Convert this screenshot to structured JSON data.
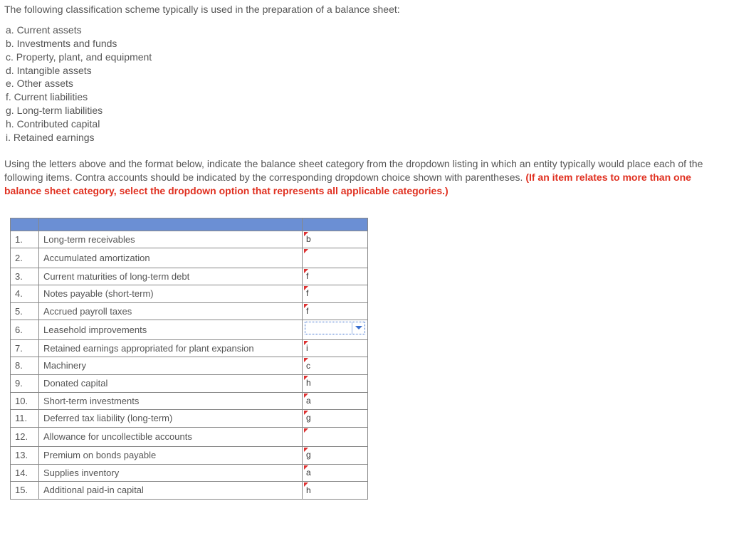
{
  "intro": "The following classification scheme typically is used in the preparation of a balance sheet:",
  "scheme": [
    "a. Current assets",
    "b. Investments and funds",
    "c. Property, plant, and equipment",
    "d. Intangible assets",
    "e. Other assets",
    "f. Current liabilities",
    "g. Long-term liabilities",
    "h. Contributed capital",
    "i. Retained earnings"
  ],
  "instructions_plain": "Using the letters above and the format below, indicate the balance sheet category from the dropdown listing in which an entity typically would place each of the following items. Contra accounts should be indicated by the corresponding dropdown choice shown with parentheses. ",
  "instructions_red": "(If an item relates to more than one balance sheet category, select the dropdown option that represents all applicable categories.)",
  "header_color": "#6b8fd4",
  "dropdown_arrow_color": "#3a6fcf",
  "rows": [
    {
      "num": "1.",
      "desc": "Long-term receivables",
      "answer": "b",
      "tick": true,
      "active": false
    },
    {
      "num": "2.",
      "desc": "Accumulated amortization",
      "answer": "",
      "tick": true,
      "active": false
    },
    {
      "num": "3.",
      "desc": "Current maturities of long-term debt",
      "answer": "f",
      "tick": true,
      "active": false
    },
    {
      "num": "4.",
      "desc": "Notes payable (short-term)",
      "answer": "f",
      "tick": true,
      "active": false
    },
    {
      "num": "5.",
      "desc": "Accrued payroll taxes",
      "answer": "f",
      "tick": true,
      "active": false
    },
    {
      "num": "6.",
      "desc": "Leasehold improvements",
      "answer": "",
      "tick": false,
      "active": true
    },
    {
      "num": "7.",
      "desc": "Retained earnings appropriated for plant expansion",
      "answer": "i",
      "tick": true,
      "active": false
    },
    {
      "num": "8.",
      "desc": "Machinery",
      "answer": "c",
      "tick": true,
      "active": false
    },
    {
      "num": "9.",
      "desc": "Donated capital",
      "answer": "h",
      "tick": true,
      "active": false
    },
    {
      "num": "10.",
      "desc": "Short-term investments",
      "answer": "a",
      "tick": true,
      "active": false
    },
    {
      "num": "11.",
      "desc": "Deferred tax liability (long-term)",
      "answer": "g",
      "tick": true,
      "active": false
    },
    {
      "num": "12.",
      "desc": "Allowance for uncollectible accounts",
      "answer": "",
      "tick": true,
      "active": false
    },
    {
      "num": "13.",
      "desc": "Premium on bonds payable",
      "answer": "g",
      "tick": true,
      "active": false
    },
    {
      "num": "14.",
      "desc": "Supplies inventory",
      "answer": "a",
      "tick": true,
      "active": false
    },
    {
      "num": "15.",
      "desc": "Additional paid-in capital",
      "answer": "h",
      "tick": true,
      "active": false
    }
  ]
}
